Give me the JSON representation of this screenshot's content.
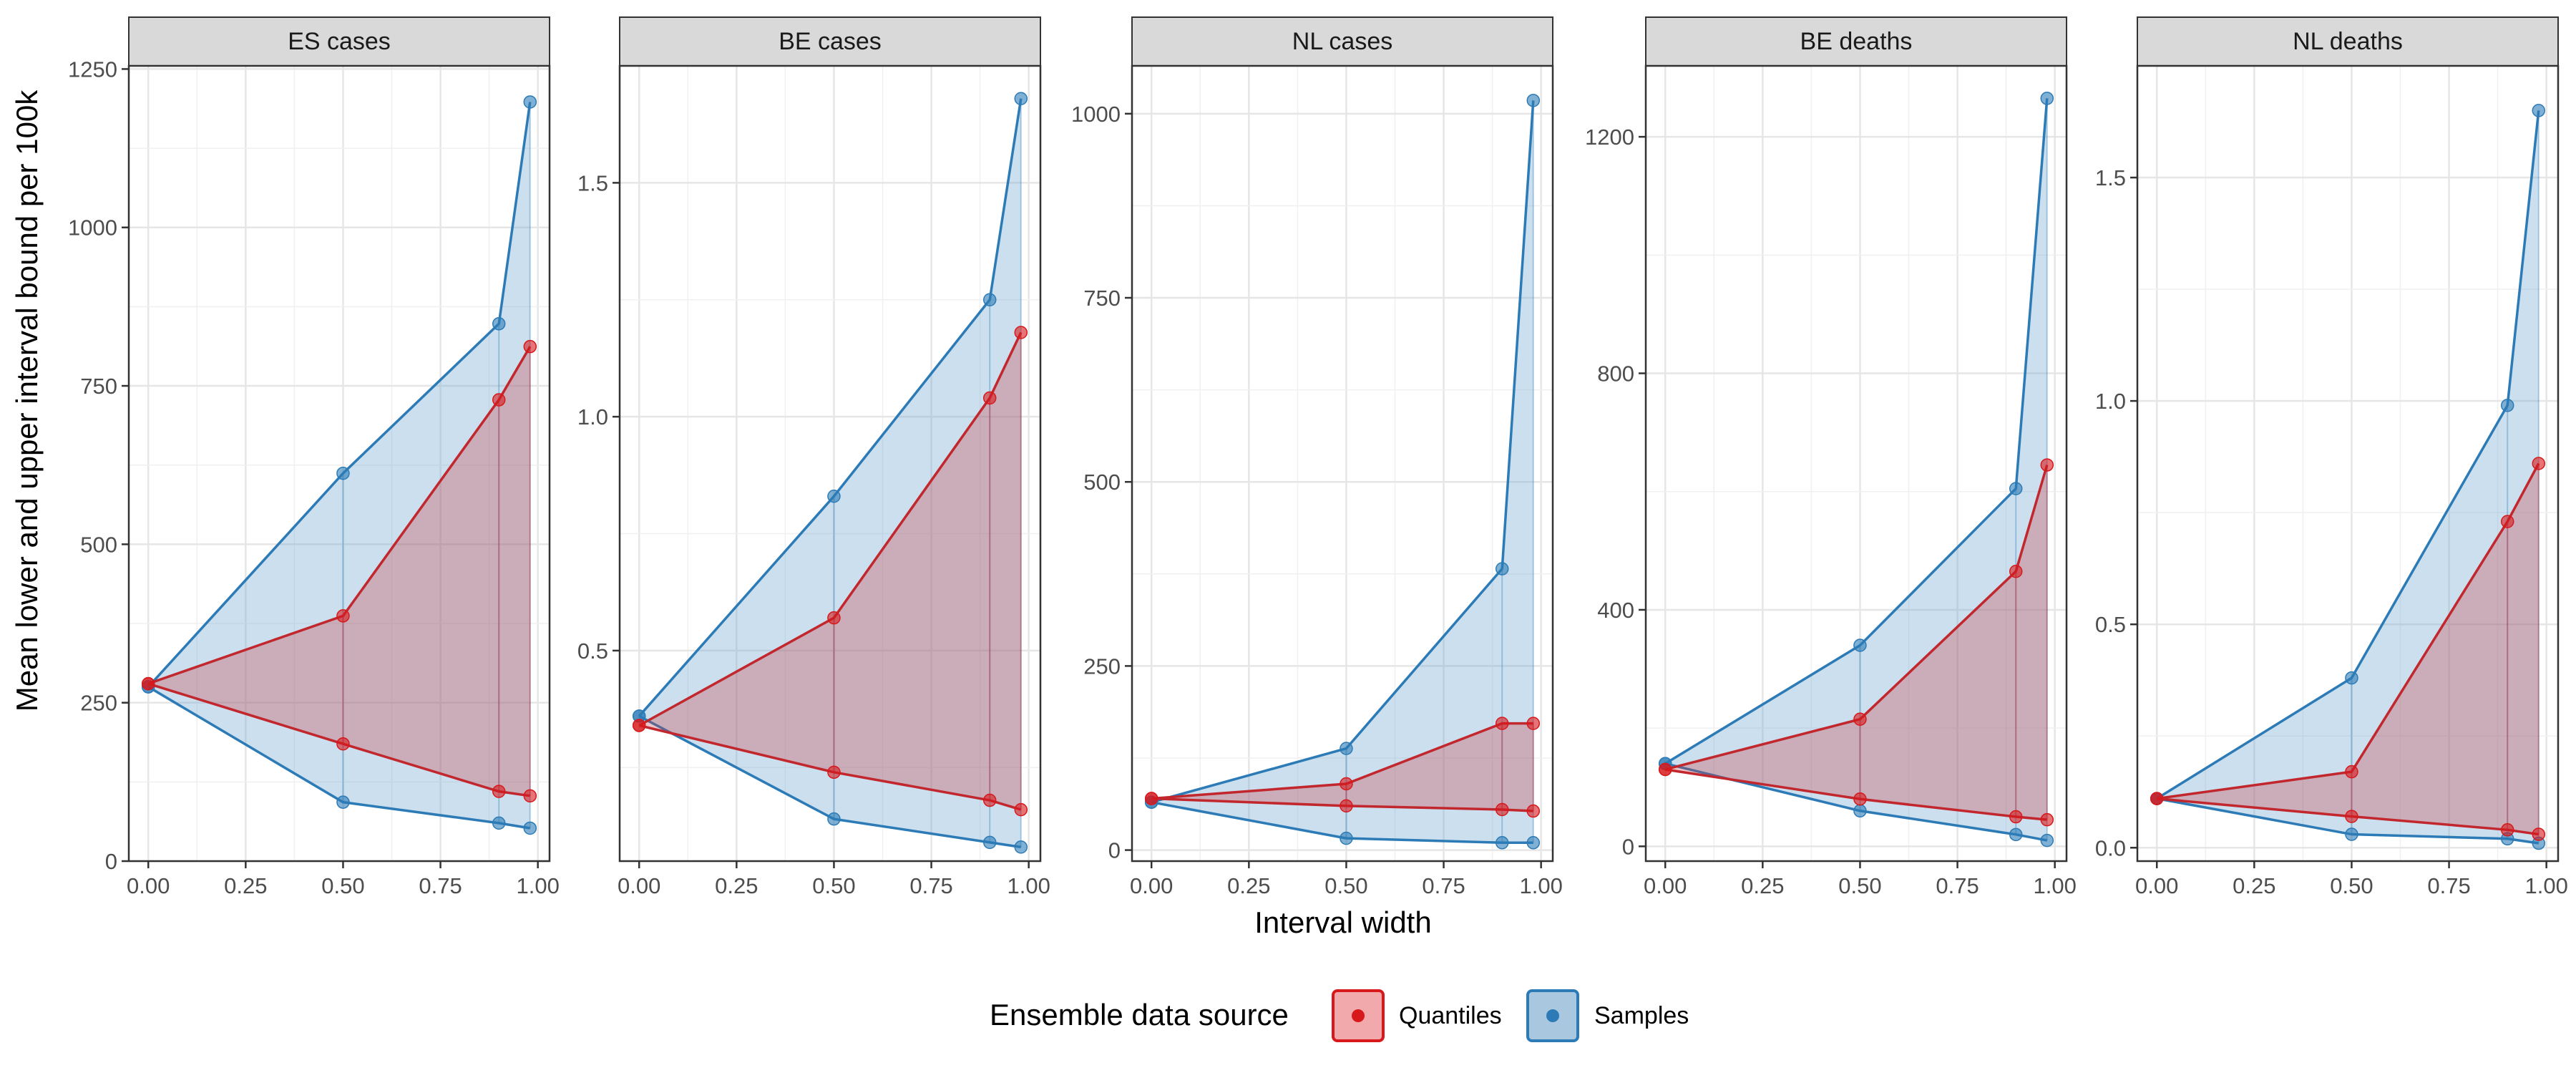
{
  "x_axis_title": "Interval width",
  "y_axis_title": "Mean lower and upper interval bound per 100k",
  "legend": {
    "title": "Ensemble data source",
    "items": [
      {
        "label": "Quantiles",
        "color": "#d7191c",
        "fill": "#f2a9ab"
      },
      {
        "label": "Samples",
        "color": "#2c7bb6",
        "fill": "#a9c8e0"
      }
    ]
  },
  "colors": {
    "quantiles": "#c1272d",
    "samples": "#2c7bb6"
  },
  "chart_data": [
    {
      "type": "area",
      "panel": "ES cases",
      "x_ticks": [
        "0.00",
        "0.25",
        "0.50",
        "0.75",
        "1.00"
      ],
      "y_ticks": [
        0,
        250,
        500,
        750,
        1000,
        1250
      ],
      "xlim": [
        -0.05,
        1.03
      ],
      "ylim": [
        0,
        1255
      ],
      "x": [
        0,
        0.5,
        0.9,
        0.98
      ],
      "series": [
        {
          "name": "Quantiles",
          "lower": [
            280,
            185,
            110,
            103
          ],
          "upper": [
            280,
            387,
            728,
            812
          ]
        },
        {
          "name": "Samples",
          "lower": [
            275,
            93,
            60,
            52
          ],
          "upper": [
            275,
            612,
            848,
            1198
          ]
        }
      ]
    },
    {
      "type": "area",
      "panel": "BE cases",
      "x_ticks": [
        "0.00",
        "0.25",
        "0.50",
        "0.75",
        "1.00"
      ],
      "y_ticks": [
        0.5,
        1.0,
        1.5
      ],
      "y_tick_labels": [
        "0.5",
        "1.0",
        "1.5"
      ],
      "xlim": [
        -0.05,
        1.03
      ],
      "ylim": [
        0.05,
        1.75
      ],
      "x": [
        0,
        0.5,
        0.9,
        0.98
      ],
      "series": [
        {
          "name": "Quantiles",
          "lower": [
            0.34,
            0.24,
            0.18,
            0.16
          ],
          "upper": [
            0.34,
            0.57,
            1.04,
            1.18
          ]
        },
        {
          "name": "Samples",
          "lower": [
            0.36,
            0.14,
            0.09,
            0.08
          ],
          "upper": [
            0.36,
            0.83,
            1.25,
            1.68
          ]
        }
      ]
    },
    {
      "type": "area",
      "panel": "NL cases",
      "x_ticks": [
        "0.00",
        "0.25",
        "0.50",
        "0.75",
        "1.00"
      ],
      "y_ticks": [
        0,
        250,
        500,
        750,
        1000
      ],
      "xlim": [
        -0.05,
        1.03
      ],
      "ylim": [
        -15,
        1065
      ],
      "x": [
        0,
        0.5,
        0.9,
        0.98
      ],
      "series": [
        {
          "name": "Quantiles",
          "lower": [
            70,
            60,
            55,
            53
          ],
          "upper": [
            70,
            90,
            172,
            172
          ]
        },
        {
          "name": "Samples",
          "lower": [
            65,
            16,
            10,
            10
          ],
          "upper": [
            65,
            138,
            382,
            1018
          ]
        }
      ]
    },
    {
      "type": "area",
      "panel": "BE deaths",
      "x_ticks": [
        "0.00",
        "0.25",
        "0.50",
        "0.75",
        "1.00"
      ],
      "y_ticks": [
        0,
        400,
        800,
        1200
      ],
      "xlim": [
        -0.05,
        1.03
      ],
      "ylim": [
        -25,
        1320
      ],
      "x": [
        0,
        0.5,
        0.9,
        0.98
      ],
      "series": [
        {
          "name": "Quantiles",
          "lower": [
            130,
            80,
            50,
            45
          ],
          "upper": [
            130,
            215,
            465,
            645
          ]
        },
        {
          "name": "Samples",
          "lower": [
            140,
            60,
            20,
            10
          ],
          "upper": [
            140,
            340,
            605,
            1265
          ]
        }
      ]
    },
    {
      "type": "area",
      "panel": "NL deaths",
      "x_ticks": [
        "0.00",
        "0.25",
        "0.50",
        "0.75",
        "1.00"
      ],
      "y_ticks": [
        0.0,
        0.5,
        1.0,
        1.5
      ],
      "y_tick_labels": [
        "0.0",
        "0.5",
        "1.0",
        "1.5"
      ],
      "xlim": [
        -0.05,
        1.03
      ],
      "ylim": [
        -0.03,
        1.75
      ],
      "x": [
        0,
        0.5,
        0.9,
        0.98
      ],
      "series": [
        {
          "name": "Quantiles",
          "lower": [
            0.11,
            0.07,
            0.04,
            0.03
          ],
          "upper": [
            0.11,
            0.17,
            0.73,
            0.86
          ]
        },
        {
          "name": "Samples",
          "lower": [
            0.11,
            0.03,
            0.02,
            0.01
          ],
          "upper": [
            0.11,
            0.38,
            0.99,
            1.65
          ]
        }
      ]
    }
  ]
}
